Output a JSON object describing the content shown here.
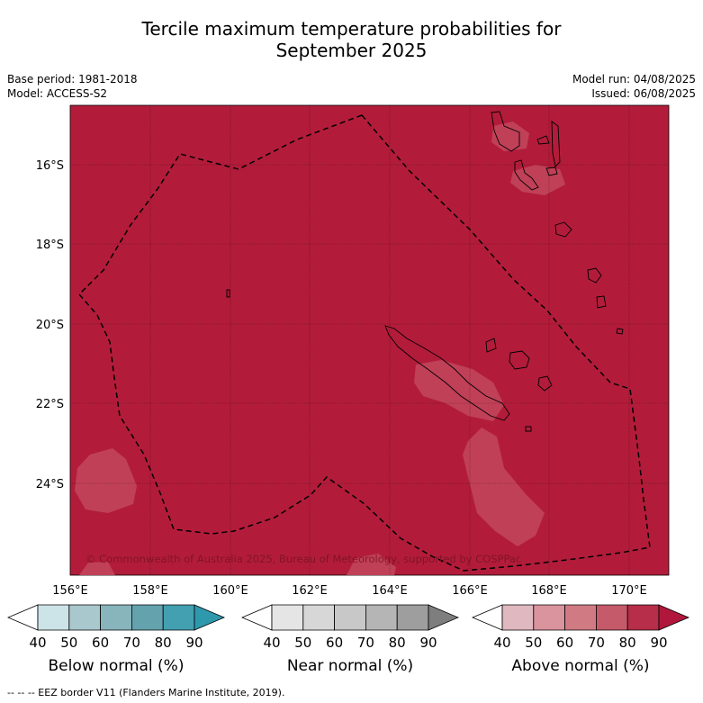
{
  "title_line1": "Tercile maximum temperature probabilities for",
  "title_line2": "September 2025",
  "meta_left": [
    "Base period: 1981-2018",
    "Model: ACCESS-S2"
  ],
  "meta_right": [
    "Model run: 04/08/2025",
    "Issued: 06/08/2025"
  ],
  "map": {
    "lon_ticks": [
      "156°E",
      "158°E",
      "160°E",
      "162°E",
      "164°E",
      "166°E",
      "168°E",
      "170°E"
    ],
    "lat_ticks": [
      "16°S",
      "18°S",
      "20°S",
      "22°S",
      "24°S"
    ],
    "copyright": "© Commonwealth of Australia 2025, Bureau of Meteorology, supported by COSPPac",
    "fill_color": "#b21c3a",
    "light_patch_color": "#c04058"
  },
  "colorbars": [
    {
      "label": "Below normal (%)",
      "ticks": [
        "40",
        "50",
        "60",
        "70",
        "80",
        "90"
      ],
      "colors": [
        "#ffffff",
        "#cce3e7",
        "#a8c8cd",
        "#88b4bc",
        "#64a2ae",
        "#42a0b0",
        "#2e98ad"
      ]
    },
    {
      "label": "Near normal (%)",
      "ticks": [
        "40",
        "50",
        "60",
        "70",
        "80",
        "90"
      ],
      "colors": [
        "#ffffff",
        "#e5e5e5",
        "#d7d7d7",
        "#c8c8c8",
        "#b5b5b5",
        "#9e9e9e",
        "#7e7e7e"
      ]
    },
    {
      "label": "Above normal (%)",
      "ticks": [
        "40",
        "50",
        "60",
        "70",
        "80",
        "90"
      ],
      "colors": [
        "#ffffff",
        "#e0b8c0",
        "#d9949e",
        "#d07b84",
        "#c45a6a",
        "#b62e49",
        "#b0173b"
      ]
    }
  ],
  "legend_footer": "--  --  -- EEZ border V11 (Flanders Marine Institute, 2019)."
}
